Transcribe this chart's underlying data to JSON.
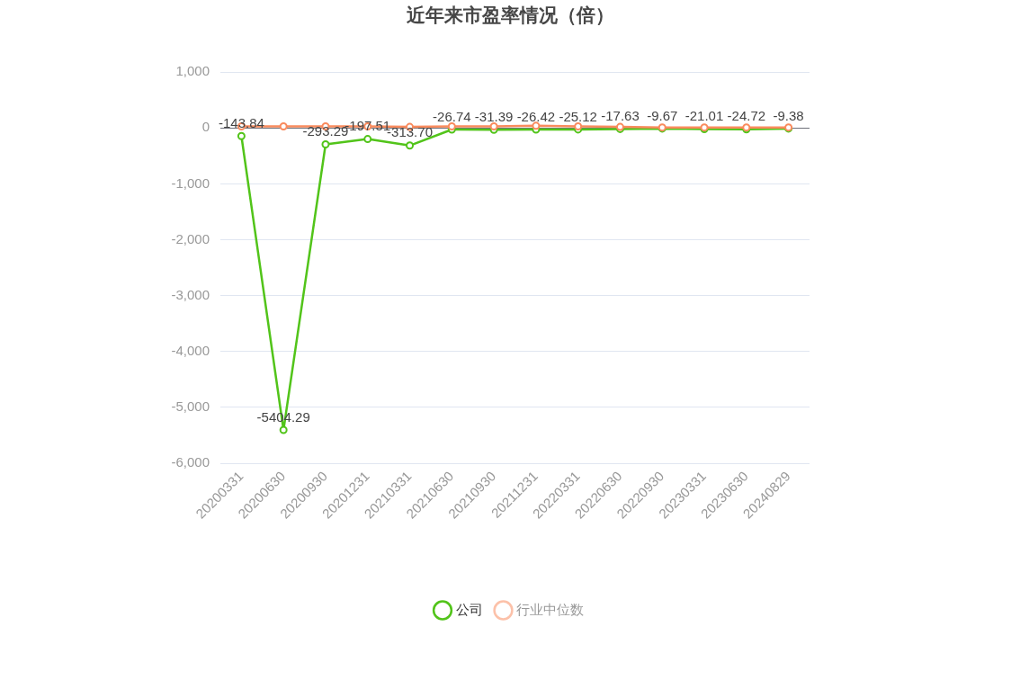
{
  "chart_data": {
    "type": "line",
    "title": "近年来市盈率情况（倍）",
    "categories": [
      "20200331",
      "20200630",
      "20200930",
      "20201231",
      "20210331",
      "20210630",
      "20210930",
      "20211231",
      "20220331",
      "20220630",
      "20220930",
      "20230331",
      "20230630",
      "20240829"
    ],
    "series": [
      {
        "name": "公司",
        "color": "#52c41a",
        "values": [
          -143.84,
          -5404.29,
          -293.29,
          -197.51,
          -313.7,
          -26.74,
          -31.39,
          -26.42,
          -25.12,
          -17.63,
          -9.67,
          -21.01,
          -24.72,
          -9.38
        ],
        "value_labels": [
          "-143.84",
          "-5404.29",
          "-293.29",
          "-197.51",
          "-313.70",
          "-26.74",
          "-31.39",
          "-26.42",
          "-25.12",
          "-17.63",
          "-9.67",
          "-21.01",
          "-24.72",
          "-9.38"
        ]
      },
      {
        "name": "行业中位数",
        "color": "#f98b5e",
        "values": [
          30,
          30,
          30,
          30,
          20,
          30,
          30,
          40,
          30,
          20,
          10,
          10,
          10,
          10
        ]
      }
    ],
    "ylim": [
      -6000,
      1000
    ],
    "yticks": [
      {
        "value": -6000,
        "label": "-6,000"
      },
      {
        "value": -5000,
        "label": "-5,000"
      },
      {
        "value": -4000,
        "label": "-4,000"
      },
      {
        "value": -3000,
        "label": "-3,000"
      },
      {
        "value": -2000,
        "label": "-2,000"
      },
      {
        "value": -1000,
        "label": "-1,000"
      },
      0,
      {
        "value": 1000,
        "label": "1,000"
      }
    ],
    "grid": "y",
    "legend": "bottom",
    "marker": "circle"
  }
}
